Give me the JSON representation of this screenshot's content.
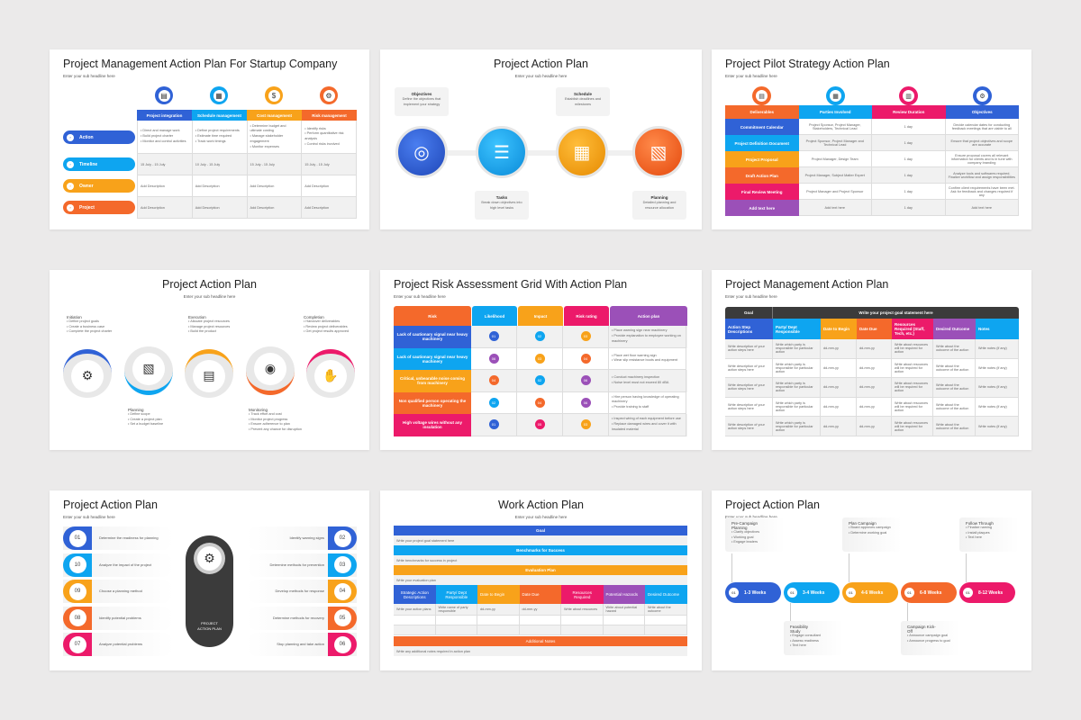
{
  "colors": {
    "blue": "#3062d6",
    "sky": "#0ea5f0",
    "amber": "#f8a21a",
    "orange": "#f4692b",
    "pink": "#ec1a6a",
    "purple": "#9b50b8",
    "dark": "#3b3b3b",
    "bg": "#ebeaea"
  },
  "common": {
    "subheadline": "Enter your sub headline here"
  },
  "slide1": {
    "title": "Project Management Action Plan For Startup Company",
    "columns": [
      {
        "label": "Project integration",
        "icon": "clipboard-icon",
        "bullets": [
          "Direct and manage work",
          "Build project charter",
          "Monitor and control activities"
        ],
        "timeline": "15 July - 15 July"
      },
      {
        "label": "Schedule management",
        "icon": "calendar-icon",
        "bullets": [
          "Define project requirements",
          "Estimate time required",
          "Track work timings"
        ],
        "timeline": "10 July - 15 July"
      },
      {
        "label": "Cost management",
        "icon": "money-icon",
        "bullets": [
          "Determine budget and ultimate costing",
          "Manage stakeholder engagement",
          "Monitor expenses"
        ],
        "timeline": "15 July - 15 July"
      },
      {
        "label": "Risk management",
        "icon": "gear-hand-icon",
        "bullets": [
          "Identify risks",
          "Perform quantitative risk analysis",
          "Control risks involved"
        ],
        "timeline": "15 July - 15 July"
      }
    ],
    "rows": [
      "Action",
      "Timeline",
      "Owner",
      "Project"
    ],
    "placeholder": "Add Description"
  },
  "slide2": {
    "title": "Project Action Plan",
    "steps": [
      {
        "label": "Objectives",
        "desc": "Define the objectives that implement your strategy",
        "icon": "target-hands-icon"
      },
      {
        "label": "Tasks",
        "desc": "Break down objectives into high level tasks",
        "icon": "task-list-icon"
      },
      {
        "label": "Schedule",
        "desc": "Establish deadlines and milestones",
        "icon": "calendar-check-icon"
      },
      {
        "label": "Planning",
        "desc": "Detailed planning and resource allocation",
        "icon": "blueprint-icon"
      }
    ]
  },
  "slide3": {
    "title": "Project Pilot Strategy Action Plan",
    "headers": [
      "Deliverables",
      "Parties Involved",
      "Review Duration",
      "Objectives"
    ],
    "rows": [
      {
        "deliverable": "Commitment Calendar",
        "parties": "Project Sponsor, Project Manager, Stakeholders, Technical Lead",
        "duration": "1 day",
        "objective": "Decide calendar dates for conducting feedback meetings that are viable to all"
      },
      {
        "deliverable": "Project Definition Document",
        "parties": "Project Sponsor, Project Manager and Technical Lead",
        "duration": "1 day",
        "objective": "Ensure that project objectives and scope are accurate"
      },
      {
        "deliverable": "Project Proposal",
        "parties": "Project Manager, Design Team",
        "duration": "1 day",
        "objective": "Ensure proposal covers all relevant information for clients and is in tune with company branding"
      },
      {
        "deliverable": "Draft Action Plan",
        "parties": "Project Manager, Subject Matter Expert",
        "duration": "1 day",
        "objective": "Analyze tools and softwares required. Finalize workflow and assign responsibilities"
      },
      {
        "deliverable": "Final Review Meeting",
        "parties": "Project Manager and Project Sponsor",
        "duration": "1 day",
        "objective": "Confirm client requirements have been met. Ask for feedback and changes required if any"
      },
      {
        "deliverable": "Add text here",
        "parties": "Add text here",
        "duration": "1 day",
        "objective": "Add text here"
      }
    ]
  },
  "slide4": {
    "title": "Project Action Plan",
    "phases": [
      {
        "label": "Initiation",
        "bullets": [
          "Define project goals",
          "Create a business case",
          "Complete the project charter"
        ]
      },
      {
        "label": "Planning",
        "bullets": [
          "Define scope",
          "Create a project plan",
          "Set a budget baseline"
        ]
      },
      {
        "label": "Execution",
        "bullets": [
          "Allocate project resources",
          "Manage project resources",
          "Build the product"
        ]
      },
      {
        "label": "Monitoring",
        "bullets": [
          "Track effort and cost",
          "Monitor project progress",
          "Ensure adherence to plan",
          "Prevent any chance for disruption"
        ]
      },
      {
        "label": "Completion",
        "bullets": [
          "Handover deliverables",
          "Review project deliverables",
          "Get project results approved"
        ]
      }
    ]
  },
  "slide5": {
    "title": "Project Risk Assessment Grid With Action Plan",
    "headers": [
      "Risk",
      "Likelihood",
      "Impact",
      "Risk rating",
      "Action plan"
    ],
    "rows": [
      {
        "risk": "Lack of cautionary signal near heavy machinery",
        "likelihood": "01",
        "impact": "02",
        "rating": "03",
        "actions": [
          "Place warning sign near machinery",
          "Provide explanation to employee working on machinery"
        ]
      },
      {
        "risk": "Lack of cautionary signal near heavy machinery",
        "likelihood": "06",
        "impact": "03",
        "rating": "04",
        "actions": [
          "Place wet floor warning sign",
          "Wear slip resistance boots and equipment"
        ]
      },
      {
        "risk": "Critical, unbearable noise coming from machinery",
        "likelihood": "04",
        "impact": "02",
        "rating": "06",
        "actions": [
          "Conduct machinery inspection",
          "Noise level must not exceed 80 dBA"
        ]
      },
      {
        "risk": "Non qualified person operating the machinery",
        "likelihood": "02",
        "impact": "04",
        "rating": "06",
        "actions": [
          "Hire person having knowledge of operating machinery",
          "Provide training to staff"
        ]
      },
      {
        "risk": "High voltage wires without any insulation",
        "likelihood": "01",
        "impact": "05",
        "rating": "03",
        "actions": [
          "Inspect wiring of each equipment before use",
          "Replace damaged wires and cover it with insulated material"
        ]
      }
    ]
  },
  "slide6": {
    "title": "Project Management Action Plan",
    "goal_label": "Goal",
    "goal_statement": "Write your project goal statement here",
    "headers": [
      "Action Step Descriptions",
      "Party/ Dept Responsible",
      "Date to Begin",
      "Date Due",
      "Resources Required (Staff, Tech, etc.)",
      "Desired Outcome",
      "Notes"
    ],
    "row": [
      "Write description of your action steps here",
      "Write which party is responsible for particular action",
      "dd-mm-yy",
      "dd-mm-yy",
      "Write about resources will be required for action",
      "Write about the outcome of the action",
      "Write notes (if any)"
    ],
    "row_count": 5
  },
  "slide7": {
    "title": "Project Action Plan",
    "center_label": "PROJECT ACTION PLAN",
    "left": [
      {
        "num": "01",
        "text": "Determine the readiness for planning"
      },
      {
        "num": "10",
        "text": "Analyze the impact of the project"
      },
      {
        "num": "09",
        "text": "Choose a planning method"
      },
      {
        "num": "08",
        "text": "Identify potential problems"
      },
      {
        "num": "07",
        "text": "Analyze potential problems"
      }
    ],
    "right": [
      {
        "num": "02",
        "text": "Identify warning signs"
      },
      {
        "num": "03",
        "text": "Determine methods for prevention"
      },
      {
        "num": "04",
        "text": "Develop methods for response"
      },
      {
        "num": "05",
        "text": "Determine methods for recovery"
      },
      {
        "num": "06",
        "text": "Stop planning and take action"
      }
    ]
  },
  "slide8": {
    "title": "Work Action Plan",
    "goal": "Goal",
    "goal_text": "Write your project goal statement here",
    "bench": "Benchmarks for Success",
    "bench_text": "Write benchmarks for success in project",
    "eval": "Evaluation Plan",
    "eval_text": "Write your evaluation plan",
    "headers": [
      "Strategic Action Descriptions",
      "Party/ Dept Responsible",
      "Date to Begin",
      "Date Due",
      "Resources Required",
      "Potential Hazards",
      "Desired Outcome"
    ],
    "row": [
      "Write your action plans",
      "Write name of party responsible",
      "dd-mm-yy",
      "dd-mm-yy",
      "Write about resources",
      "Write about potential hazard",
      "Write about the outcome"
    ],
    "notes": "Additional Notes",
    "notes_text": "Write any additional notes required in action plan"
  },
  "slide9": {
    "title": "Project Action Plan",
    "stages": [
      {
        "num": "01",
        "weeks": "1-3 Weeks",
        "label": "Pre-Campaign Planning",
        "bullets": [
          "Clarify objectives",
          "Working goal",
          "Engage leaders"
        ],
        "pos": "top"
      },
      {
        "num": "01",
        "weeks": "3-4 Weeks",
        "label": "Feasibility Study",
        "bullets": [
          "Engage consultant",
          "Assess readiness",
          "Text here"
        ],
        "pos": "bottom"
      },
      {
        "num": "01",
        "weeks": "4-6 Weeks",
        "label": "Plan Campaign",
        "bullets": [
          "Board approves campaign",
          "Determine working goal"
        ],
        "pos": "top"
      },
      {
        "num": "01",
        "weeks": "6-8 Weeks",
        "label": "Campaign Kick-Off",
        "bullets": [
          "Announce campaign goal",
          "Announce progress to goal"
        ],
        "pos": "bottom"
      },
      {
        "num": "01",
        "weeks": "8-12 Weeks",
        "label": "Follow Through",
        "bullets": [
          "Finalize naming",
          "Install plaques",
          "Text here"
        ],
        "pos": "top"
      }
    ]
  }
}
